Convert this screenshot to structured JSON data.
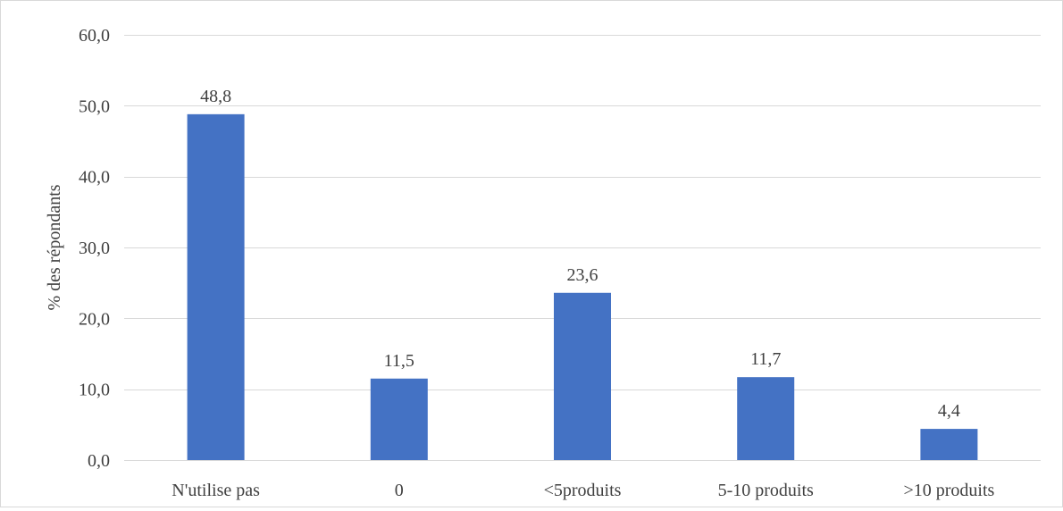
{
  "chart_data": {
    "type": "bar",
    "title": "",
    "xlabel": "",
    "ylabel": "% des répondants",
    "categories": [
      "N'utilise pas",
      "0",
      "<5produits",
      "5-10 produits",
      ">10 produits"
    ],
    "values": [
      48.8,
      11.5,
      23.6,
      11.7,
      4.4
    ],
    "value_labels": [
      "48,8",
      "11,5",
      "23,6",
      "11,7",
      "4,4"
    ],
    "ylim": [
      0,
      60
    ],
    "yticks": [
      0,
      10,
      20,
      30,
      40,
      50,
      60
    ],
    "ytick_labels": [
      "0,0",
      "10,0",
      "20,0",
      "30,0",
      "40,0",
      "50,0",
      "60,0"
    ],
    "grid": true,
    "legend": "none",
    "bar_color": "#4472c4",
    "grid_color": "#d9d9d9"
  }
}
